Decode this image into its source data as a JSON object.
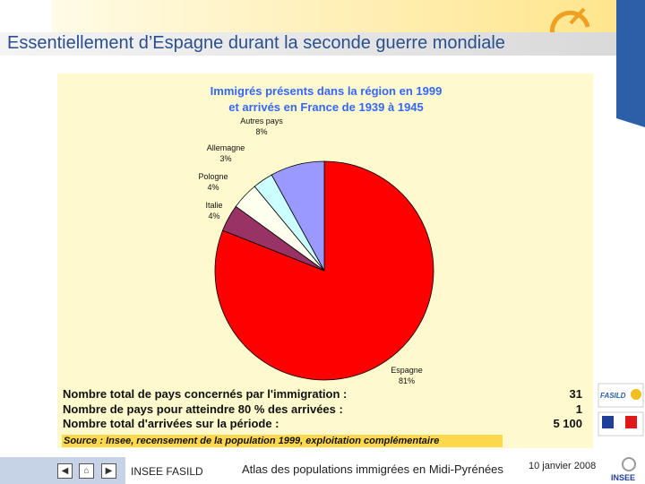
{
  "slide": {
    "title": "Essentiellement d’Espagne durant la seconde guerre mondiale"
  },
  "chart_data": {
    "type": "pie",
    "title_lines": [
      "Immigrés présents dans la région en 1999",
      "et arrivés en France de 1939 à 1945"
    ],
    "slices": [
      {
        "label": "Espagne",
        "pct_label": "81%",
        "value": 81,
        "color": "#ff0000"
      },
      {
        "label": "Italie",
        "pct_label": "4%",
        "value": 4,
        "color": "#993366"
      },
      {
        "label": "Pologne",
        "pct_label": "4%",
        "value": 4,
        "color": "#fffff0"
      },
      {
        "label": "Allemagne",
        "pct_label": "3%",
        "value": 3,
        "color": "#ccffff"
      },
      {
        "label": "Autres pays",
        "pct_label": "8%",
        "value": 8,
        "color": "#9999ff"
      }
    ],
    "start_angle_deg": 0,
    "direction": "clockwise",
    "title_color": "#3366ff"
  },
  "summary": {
    "rows": [
      {
        "label": "Nombre total de pays concernés par l'immigration :",
        "value": "31"
      },
      {
        "label": "Nombre de pays pour atteindre 80 % des arrivées :",
        "value": "1"
      },
      {
        "label": "Nombre total d'arrivées sur la période :",
        "value": "5 100"
      }
    ],
    "source": "Source : Insee, recensement de la population 1999, exploitation complémentaire"
  },
  "footer": {
    "org": "INSEE FASILD",
    "caption": "Atlas des populations immigrées en Midi-Pyrénées",
    "date": "10 janvier 2008",
    "nav_prev": "◀",
    "nav_home": "⌂",
    "nav_next": "▶"
  },
  "logos": {
    "fasild": "FASILD",
    "insee": "INSEE"
  }
}
